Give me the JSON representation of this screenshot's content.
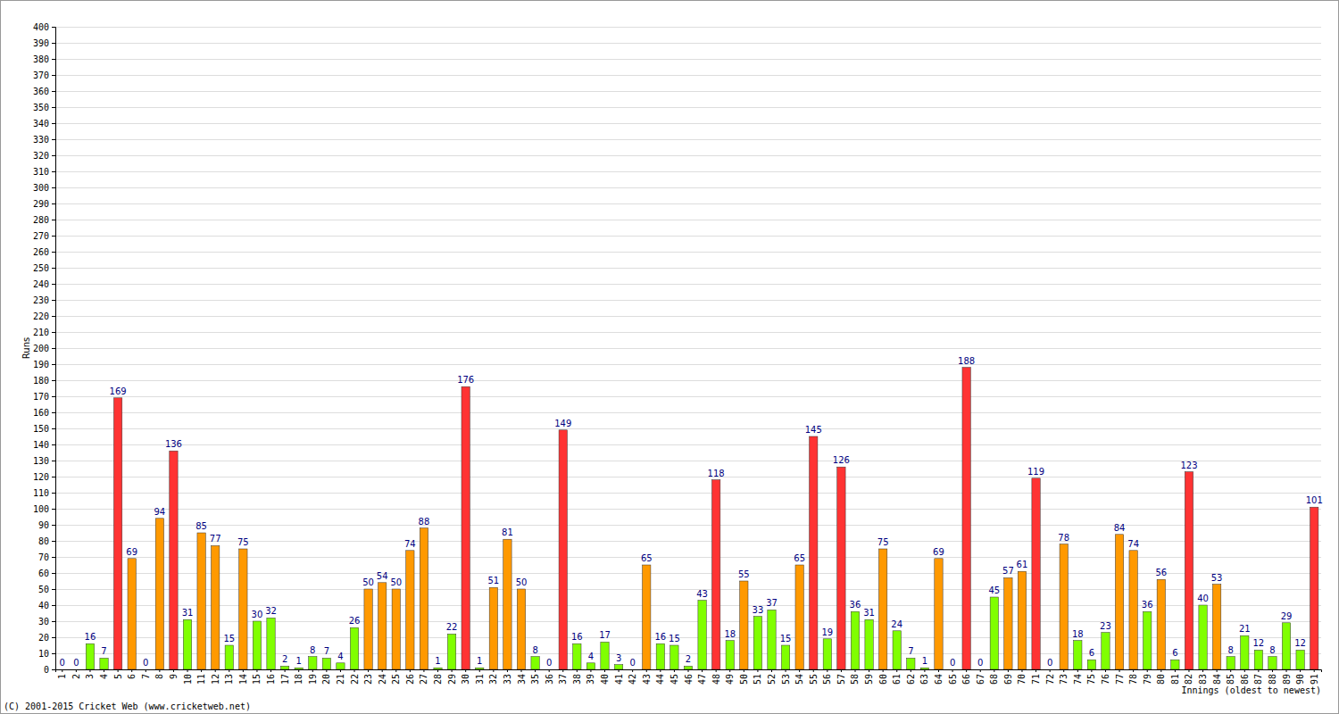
{
  "chart_data": {
    "type": "bar",
    "xlabel": "Innings (oldest to newest)",
    "ylabel": "Runs",
    "annotations": [
      "(C) 2001-2015 Cricket Web (www.cricketweb.net)"
    ],
    "categories": [
      "1",
      "2",
      "3",
      "4",
      "5",
      "6",
      "7",
      "8",
      "9",
      "10",
      "11",
      "12",
      "13",
      "14",
      "15",
      "16",
      "17",
      "18",
      "19",
      "20",
      "21",
      "22",
      "23",
      "24",
      "25",
      "26",
      "27",
      "28",
      "29",
      "30",
      "31",
      "32",
      "33",
      "34",
      "35",
      "36",
      "37",
      "38",
      "39",
      "40",
      "41",
      "42",
      "43",
      "44",
      "45",
      "46",
      "47",
      "48",
      "49",
      "50",
      "51",
      "52",
      "53",
      "54",
      "55",
      "56",
      "57",
      "58",
      "59",
      "60",
      "61",
      "62",
      "63",
      "64",
      "65",
      "66",
      "67",
      "68",
      "69",
      "70",
      "71",
      "72",
      "73",
      "74",
      "75",
      "76",
      "77",
      "78",
      "79",
      "80",
      "81",
      "82",
      "83",
      "84",
      "85",
      "86",
      "87",
      "88",
      "89",
      "90",
      "91"
    ],
    "values": [
      0,
      0,
      16,
      7,
      169,
      69,
      0,
      94,
      136,
      31,
      85,
      77,
      15,
      75,
      30,
      32,
      2,
      1,
      8,
      7,
      4,
      26,
      50,
      54,
      50,
      74,
      88,
      1,
      22,
      176,
      1,
      51,
      81,
      50,
      8,
      0,
      149,
      16,
      4,
      17,
      3,
      0,
      65,
      16,
      15,
      2,
      43,
      118,
      18,
      55,
      33,
      37,
      15,
      65,
      145,
      19,
      126,
      36,
      31,
      75,
      24,
      7,
      1,
      69,
      0,
      188,
      0,
      45,
      57,
      61,
      119,
      0,
      78,
      18,
      6,
      23,
      84,
      74,
      36,
      56,
      6,
      123,
      40,
      53,
      8,
      21,
      12,
      8,
      29,
      12,
      101
    ],
    "colors": [
      "#80ff00",
      "#80ff00",
      "#80ff00",
      "#80ff00",
      "#ff3333",
      "#ff9900",
      "#80ff00",
      "#ff9900",
      "#ff3333",
      "#80ff00",
      "#ff9900",
      "#ff9900",
      "#80ff00",
      "#ff9900",
      "#80ff00",
      "#80ff00",
      "#80ff00",
      "#80ff00",
      "#80ff00",
      "#80ff00",
      "#80ff00",
      "#80ff00",
      "#ff9900",
      "#ff9900",
      "#ff9900",
      "#ff9900",
      "#ff9900",
      "#80ff00",
      "#80ff00",
      "#ff3333",
      "#80ff00",
      "#ff9900",
      "#ff9900",
      "#ff9900",
      "#80ff00",
      "#80ff00",
      "#ff3333",
      "#80ff00",
      "#80ff00",
      "#80ff00",
      "#80ff00",
      "#80ff00",
      "#ff9900",
      "#80ff00",
      "#80ff00",
      "#80ff00",
      "#80ff00",
      "#ff3333",
      "#80ff00",
      "#ff9900",
      "#80ff00",
      "#80ff00",
      "#80ff00",
      "#ff9900",
      "#ff3333",
      "#80ff00",
      "#ff3333",
      "#80ff00",
      "#80ff00",
      "#ff9900",
      "#80ff00",
      "#80ff00",
      "#80ff00",
      "#ff9900",
      "#80ff00",
      "#ff3333",
      "#80ff00",
      "#80ff00",
      "#ff9900",
      "#ff9900",
      "#ff3333",
      "#80ff00",
      "#ff9900",
      "#80ff00",
      "#80ff00",
      "#80ff00",
      "#ff9900",
      "#ff9900",
      "#80ff00",
      "#ff9900",
      "#80ff00",
      "#ff3333",
      "#80ff00",
      "#ff9900",
      "#80ff00",
      "#80ff00",
      "#80ff00",
      "#80ff00",
      "#80ff00",
      "#80ff00",
      "#ff3333"
    ],
    "ylim": [
      0,
      400
    ],
    "yticks": [
      0,
      10,
      20,
      30,
      40,
      50,
      60,
      70,
      80,
      90,
      100,
      110,
      120,
      130,
      140,
      150,
      160,
      170,
      180,
      190,
      200,
      210,
      220,
      230,
      240,
      250,
      260,
      270,
      280,
      290,
      300,
      310,
      320,
      330,
      340,
      350,
      360,
      370,
      380,
      390,
      400
    ],
    "grid": true,
    "data_labels": true
  }
}
